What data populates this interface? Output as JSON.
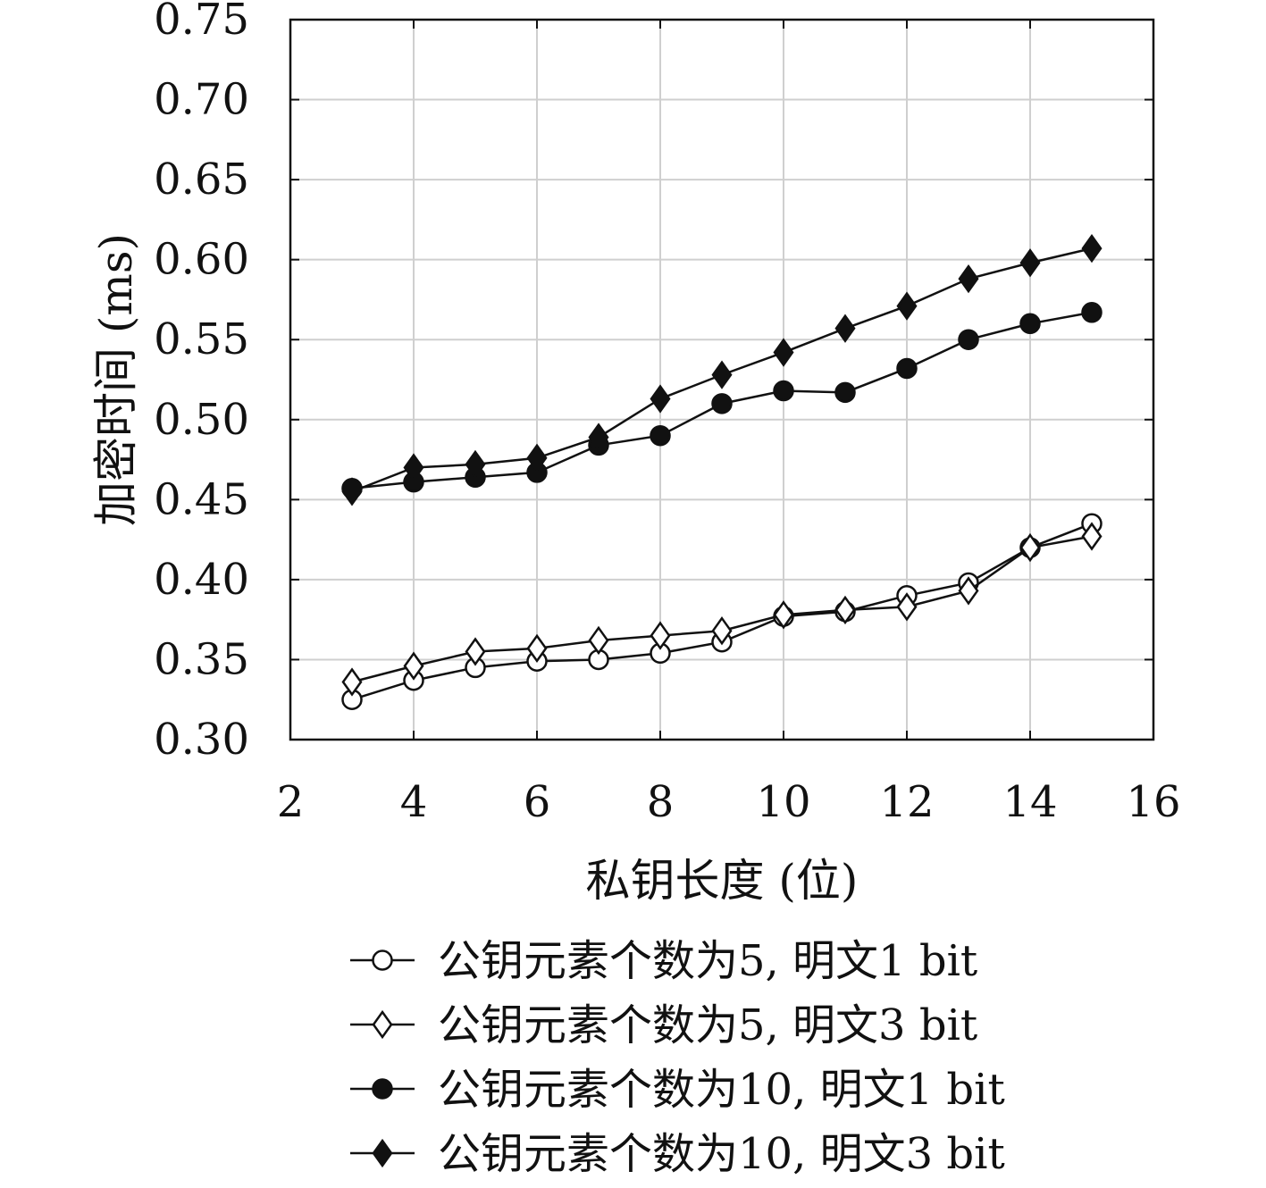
{
  "chart_data": {
    "type": "line",
    "xlabel": "私钥长度 (位)",
    "ylabel": "加密时间 (ms)",
    "xlim": [
      2,
      16
    ],
    "ylim": [
      0.3,
      0.75
    ],
    "xticks": [
      2,
      4,
      6,
      8,
      10,
      12,
      14,
      16
    ],
    "yticks": [
      0.3,
      0.35,
      0.4,
      0.45,
      0.5,
      0.55,
      0.6,
      0.65,
      0.7,
      0.75
    ],
    "ytick_labels": [
      "0.30",
      "0.35",
      "0.40",
      "0.45",
      "0.50",
      "0.55",
      "0.60",
      "0.65",
      "0.70",
      "0.75"
    ],
    "xtick_labels": [
      "2",
      "4",
      "6",
      "8",
      "10",
      "12",
      "14",
      "16"
    ],
    "grid": true,
    "legend_position": "below",
    "x": [
      3,
      4,
      5,
      6,
      7,
      8,
      9,
      10,
      11,
      12,
      13,
      14,
      15
    ],
    "series": [
      {
        "name": "公钥元素个数为5, 明文1 bit",
        "marker": "circle-open",
        "values": [
          0.325,
          0.337,
          0.345,
          0.349,
          0.35,
          0.354,
          0.361,
          0.377,
          0.38,
          0.39,
          0.398,
          0.42,
          0.435
        ]
      },
      {
        "name": "公钥元素个数为5, 明文3 bit",
        "marker": "diamond-open",
        "values": [
          0.336,
          0.346,
          0.355,
          0.357,
          0.362,
          0.365,
          0.368,
          0.378,
          0.381,
          0.383,
          0.393,
          0.42,
          0.427
        ]
      },
      {
        "name": "公钥元素个数为10, 明文1 bit",
        "marker": "circle-filled",
        "values": [
          0.457,
          0.461,
          0.464,
          0.467,
          0.484,
          0.49,
          0.51,
          0.518,
          0.517,
          0.532,
          0.55,
          0.56,
          0.567
        ]
      },
      {
        "name": "公钥元素个数为10, 明文3 bit",
        "marker": "diamond-filled",
        "values": [
          0.455,
          0.47,
          0.472,
          0.476,
          0.489,
          0.513,
          0.528,
          0.542,
          0.557,
          0.571,
          0.588,
          0.598,
          0.607
        ]
      }
    ]
  }
}
